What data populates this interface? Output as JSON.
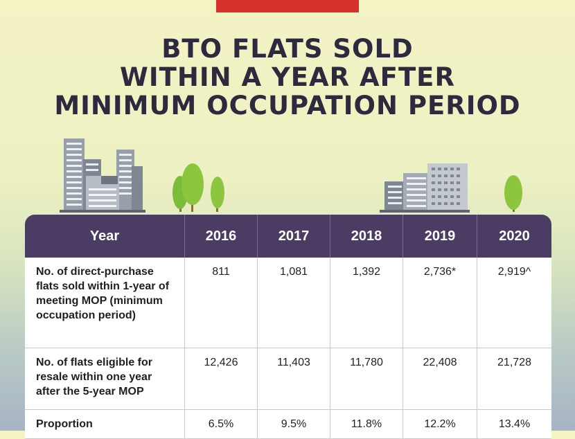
{
  "title": {
    "line1": "BTO FLATS SOLD",
    "line2": "WITHIN A YEAR AFTER",
    "line3": "MINIMUM OCCUPATION PERIOD"
  },
  "colors": {
    "header_bg": "#4a3c62",
    "title_text": "#2d2a3f",
    "red_tab": "#d8312b",
    "tree_green": "#8cc63f"
  },
  "table": {
    "header_label": "Year",
    "years": [
      "2016",
      "2017",
      "2018",
      "2019",
      "2020"
    ],
    "rows": [
      {
        "label": "No. of direct-purchase flats sold within 1-year of meeting MOP (minimum occupation period)",
        "values": [
          "811",
          "1,081",
          "1,392",
          "2,736*",
          "2,919^"
        ]
      },
      {
        "label": "No. of flats eligible for resale within one year after the 5-year MOP",
        "values": [
          "12,426",
          "11,403",
          "11,780",
          "22,408",
          "21,728"
        ]
      },
      {
        "label": "Proportion",
        "values": [
          "6.5%",
          "9.5%",
          "11.8%",
          "12.2%",
          "13.4%"
        ]
      }
    ]
  }
}
